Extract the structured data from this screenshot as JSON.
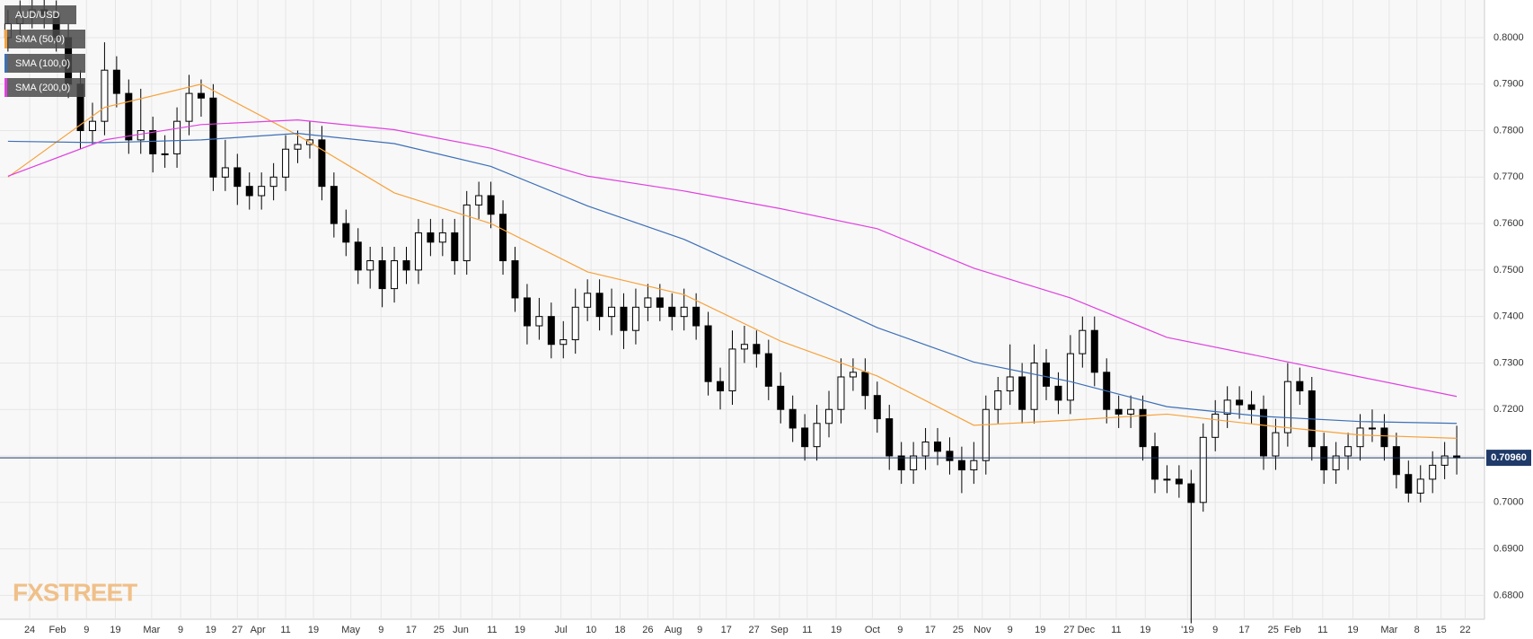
{
  "chart_data": {
    "type": "candlestick",
    "symbol": "AUD/USD",
    "watermark": "FXSTREET",
    "ylim": [
      0.67486,
      0.8081
    ],
    "xlim": [
      -0.66,
      122.3
    ],
    "yticks": [
      {
        "value": 0.68,
        "label": "0.6800"
      },
      {
        "value": 0.69,
        "label": "0.6900"
      },
      {
        "value": 0.7,
        "label": "0.7000"
      },
      {
        "value": 0.71,
        "label": "0.7100"
      },
      {
        "value": 0.72,
        "label": "0.7200"
      },
      {
        "value": 0.73,
        "label": "0.7300"
      },
      {
        "value": 0.74,
        "label": "0.7400"
      },
      {
        "value": 0.75,
        "label": "0.7500"
      },
      {
        "value": 0.76,
        "label": "0.7600"
      },
      {
        "value": 0.77,
        "label": "0.7700"
      },
      {
        "value": 0.78,
        "label": "0.7800"
      },
      {
        "value": 0.79,
        "label": "0.7900"
      },
      {
        "value": 0.8,
        "label": "0.8000"
      }
    ],
    "xticks": [
      {
        "value": 1.8,
        "label": "24"
      },
      {
        "value": 4.1,
        "label": "Feb"
      },
      {
        "value": 6.5,
        "label": "9"
      },
      {
        "value": 8.9,
        "label": "19"
      },
      {
        "value": 11.9,
        "label": "Mar"
      },
      {
        "value": 14.3,
        "label": "9"
      },
      {
        "value": 16.8,
        "label": "19"
      },
      {
        "value": 19.0,
        "label": "27"
      },
      {
        "value": 20.7,
        "label": "Apr"
      },
      {
        "value": 23.0,
        "label": "11"
      },
      {
        "value": 25.3,
        "label": "19"
      },
      {
        "value": 28.4,
        "label": "May"
      },
      {
        "value": 30.9,
        "label": "9"
      },
      {
        "value": 33.4,
        "label": "17"
      },
      {
        "value": 35.7,
        "label": "25"
      },
      {
        "value": 37.5,
        "label": "Jun"
      },
      {
        "value": 40.1,
        "label": "11"
      },
      {
        "value": 42.4,
        "label": "19"
      },
      {
        "value": 45.8,
        "label": "Jul"
      },
      {
        "value": 48.3,
        "label": "10"
      },
      {
        "value": 50.7,
        "label": "18"
      },
      {
        "value": 53.0,
        "label": "26"
      },
      {
        "value": 55.1,
        "label": "Aug"
      },
      {
        "value": 57.3,
        "label": "9"
      },
      {
        "value": 59.5,
        "label": "17"
      },
      {
        "value": 61.8,
        "label": "27"
      },
      {
        "value": 63.9,
        "label": "Sep"
      },
      {
        "value": 66.2,
        "label": "11"
      },
      {
        "value": 68.6,
        "label": "19"
      },
      {
        "value": 71.6,
        "label": "Oct"
      },
      {
        "value": 73.9,
        "label": "9"
      },
      {
        "value": 76.4,
        "label": "17"
      },
      {
        "value": 78.7,
        "label": "25"
      },
      {
        "value": 80.7,
        "label": "Nov"
      },
      {
        "value": 83.0,
        "label": "9"
      },
      {
        "value": 85.5,
        "label": "19"
      },
      {
        "value": 87.9,
        "label": "27"
      },
      {
        "value": 89.3,
        "label": "Dec"
      },
      {
        "value": 91.8,
        "label": "11"
      },
      {
        "value": 94.2,
        "label": "19"
      },
      {
        "value": 97.7,
        "label": "'19"
      },
      {
        "value": 100.0,
        "label": "9"
      },
      {
        "value": 102.4,
        "label": "17"
      },
      {
        "value": 104.8,
        "label": "25"
      },
      {
        "value": 106.4,
        "label": "Feb"
      },
      {
        "value": 108.9,
        "label": "11"
      },
      {
        "value": 111.4,
        "label": "19"
      },
      {
        "value": 114.4,
        "label": "Mar"
      },
      {
        "value": 116.7,
        "label": "8"
      },
      {
        "value": 118.7,
        "label": "15"
      },
      {
        "value": 120.7,
        "label": "22"
      }
    ],
    "last_price": {
      "value": 0.7096,
      "label": "0.70960"
    },
    "open": [
      0.8,
      0.803,
      0.805,
      0.806,
      0.805,
      0.8,
      0.79,
      0.78,
      0.782,
      0.793,
      0.788,
      0.778,
      0.78,
      0.775,
      0.775,
      0.782,
      0.788,
      0.787,
      0.77,
      0.772,
      0.768,
      0.766,
      0.768,
      0.77,
      0.776,
      0.777,
      0.778,
      0.768,
      0.76,
      0.756,
      0.75,
      0.752,
      0.746,
      0.752,
      0.75,
      0.758,
      0.756,
      0.758,
      0.752,
      0.764,
      0.766,
      0.762,
      0.752,
      0.744,
      0.738,
      0.74,
      0.734,
      0.735,
      0.742,
      0.745,
      0.74,
      0.742,
      0.737,
      0.742,
      0.744,
      0.742,
      0.74,
      0.742,
      0.738,
      0.726,
      0.724,
      0.733,
      0.734,
      0.732,
      0.725,
      0.72,
      0.716,
      0.712,
      0.717,
      0.72,
      0.727,
      0.728,
      0.723,
      0.718,
      0.71,
      0.707,
      0.71,
      0.713,
      0.711,
      0.709,
      0.707,
      0.709,
      0.72,
      0.724,
      0.727,
      0.72,
      0.73,
      0.725,
      0.722,
      0.732,
      0.737,
      0.728,
      0.72,
      0.719,
      0.72,
      0.712,
      0.705,
      0.705,
      0.704,
      0.7,
      0.714,
      0.719,
      0.722,
      0.721,
      0.72,
      0.71,
      0.715,
      0.726,
      0.724,
      0.712,
      0.707,
      0.71,
      0.712,
      0.716,
      0.716,
      0.712,
      0.706,
      0.702,
      0.705,
      0.708,
      0.71
    ],
    "high": [
      0.806,
      0.808,
      0.809,
      0.809,
      0.808,
      0.803,
      0.793,
      0.786,
      0.799,
      0.796,
      0.791,
      0.789,
      0.783,
      0.779,
      0.785,
      0.792,
      0.791,
      0.79,
      0.778,
      0.775,
      0.771,
      0.771,
      0.773,
      0.779,
      0.78,
      0.782,
      0.781,
      0.771,
      0.763,
      0.759,
      0.755,
      0.755,
      0.755,
      0.755,
      0.761,
      0.761,
      0.761,
      0.761,
      0.767,
      0.769,
      0.769,
      0.765,
      0.755,
      0.747,
      0.744,
      0.743,
      0.739,
      0.746,
      0.748,
      0.748,
      0.746,
      0.745,
      0.746,
      0.747,
      0.747,
      0.745,
      0.746,
      0.745,
      0.741,
      0.729,
      0.737,
      0.738,
      0.737,
      0.735,
      0.728,
      0.723,
      0.719,
      0.721,
      0.724,
      0.731,
      0.731,
      0.731,
      0.726,
      0.721,
      0.713,
      0.713,
      0.716,
      0.716,
      0.714,
      0.712,
      0.713,
      0.723,
      0.727,
      0.734,
      0.73,
      0.734,
      0.733,
      0.728,
      0.736,
      0.74,
      0.74,
      0.731,
      0.723,
      0.723,
      0.723,
      0.715,
      0.708,
      0.708,
      0.707,
      0.717,
      0.722,
      0.725,
      0.725,
      0.724,
      0.723,
      0.718,
      0.73,
      0.729,
      0.727,
      0.715,
      0.713,
      0.715,
      0.719,
      0.72,
      0.719,
      0.715,
      0.709,
      0.708,
      0.711,
      0.713,
      0.7165
    ],
    "low": [
      0.797,
      0.8,
      0.802,
      0.802,
      0.797,
      0.787,
      0.776,
      0.777,
      0.779,
      0.785,
      0.775,
      0.775,
      0.771,
      0.772,
      0.772,
      0.779,
      0.783,
      0.767,
      0.767,
      0.764,
      0.763,
      0.763,
      0.765,
      0.767,
      0.773,
      0.774,
      0.765,
      0.757,
      0.753,
      0.747,
      0.746,
      0.742,
      0.743,
      0.747,
      0.747,
      0.753,
      0.753,
      0.749,
      0.749,
      0.761,
      0.759,
      0.749,
      0.741,
      0.734,
      0.735,
      0.731,
      0.731,
      0.732,
      0.739,
      0.737,
      0.736,
      0.733,
      0.734,
      0.739,
      0.739,
      0.737,
      0.737,
      0.735,
      0.723,
      0.72,
      0.721,
      0.73,
      0.729,
      0.722,
      0.717,
      0.713,
      0.709,
      0.709,
      0.714,
      0.717,
      0.724,
      0.72,
      0.715,
      0.707,
      0.704,
      0.704,
      0.707,
      0.708,
      0.706,
      0.702,
      0.704,
      0.706,
      0.717,
      0.721,
      0.717,
      0.717,
      0.722,
      0.719,
      0.719,
      0.729,
      0.725,
      0.717,
      0.716,
      0.716,
      0.709,
      0.702,
      0.702,
      0.701,
      0.674,
      0.698,
      0.711,
      0.716,
      0.718,
      0.717,
      0.707,
      0.707,
      0.712,
      0.721,
      0.709,
      0.704,
      0.704,
      0.707,
      0.709,
      0.713,
      0.709,
      0.703,
      0.7,
      0.7,
      0.702,
      0.705,
      0.706
    ],
    "close": [
      0.803,
      0.805,
      0.806,
      0.805,
      0.8,
      0.79,
      0.78,
      0.782,
      0.793,
      0.788,
      0.778,
      0.78,
      0.775,
      0.775,
      0.782,
      0.788,
      0.787,
      0.77,
      0.772,
      0.768,
      0.766,
      0.768,
      0.77,
      0.776,
      0.777,
      0.778,
      0.768,
      0.76,
      0.756,
      0.75,
      0.752,
      0.746,
      0.752,
      0.75,
      0.758,
      0.756,
      0.758,
      0.752,
      0.764,
      0.766,
      0.762,
      0.752,
      0.744,
      0.738,
      0.74,
      0.734,
      0.735,
      0.742,
      0.745,
      0.74,
      0.742,
      0.737,
      0.742,
      0.744,
      0.742,
      0.74,
      0.742,
      0.738,
      0.726,
      0.724,
      0.733,
      0.734,
      0.732,
      0.725,
      0.72,
      0.716,
      0.712,
      0.717,
      0.72,
      0.727,
      0.728,
      0.723,
      0.718,
      0.71,
      0.707,
      0.71,
      0.713,
      0.711,
      0.709,
      0.707,
      0.709,
      0.72,
      0.724,
      0.727,
      0.72,
      0.73,
      0.725,
      0.722,
      0.732,
      0.737,
      0.728,
      0.72,
      0.719,
      0.72,
      0.712,
      0.705,
      0.705,
      0.704,
      0.7,
      0.714,
      0.719,
      0.722,
      0.721,
      0.72,
      0.71,
      0.715,
      0.726,
      0.724,
      0.712,
      0.707,
      0.71,
      0.712,
      0.716,
      0.716,
      0.712,
      0.706,
      0.702,
      0.705,
      0.708,
      0.71,
      0.7096
    ],
    "series": [
      {
        "name": "SMA (50,0)",
        "color": "#f7a23b",
        "x": [
          0,
          8,
          16,
          24,
          32,
          40,
          48,
          56,
          64,
          72,
          80,
          88,
          96,
          104,
          112,
          120
        ],
        "values": [
          0.77,
          0.785,
          0.79,
          0.779,
          0.7666,
          0.76,
          0.7496,
          0.7447,
          0.7347,
          0.7272,
          0.7166,
          0.7177,
          0.719,
          0.7166,
          0.7145,
          0.7138
        ]
      },
      {
        "name": "SMA (100,0)",
        "color": "#3d6fb6",
        "x": [
          0,
          8,
          16,
          24,
          32,
          40,
          48,
          56,
          64,
          72,
          80,
          88,
          96,
          104,
          112,
          120
        ],
        "values": [
          0.7777,
          0.7774,
          0.778,
          0.7794,
          0.7772,
          0.7723,
          0.7638,
          0.7566,
          0.7472,
          0.7376,
          0.7302,
          0.726,
          0.7206,
          0.7185,
          0.7174,
          0.717
        ]
      },
      {
        "name": "SMA (200,0)",
        "color": "#e040e0",
        "x": [
          0,
          8,
          16,
          24,
          32,
          40,
          48,
          56,
          64,
          72,
          80,
          88,
          96,
          104,
          112,
          120
        ],
        "values": [
          0.7702,
          0.778,
          0.7813,
          0.7823,
          0.7802,
          0.7762,
          0.7702,
          0.767,
          0.7632,
          0.7589,
          0.7504,
          0.744,
          0.7355,
          0.7313,
          0.727,
          0.7228
        ]
      }
    ]
  }
}
